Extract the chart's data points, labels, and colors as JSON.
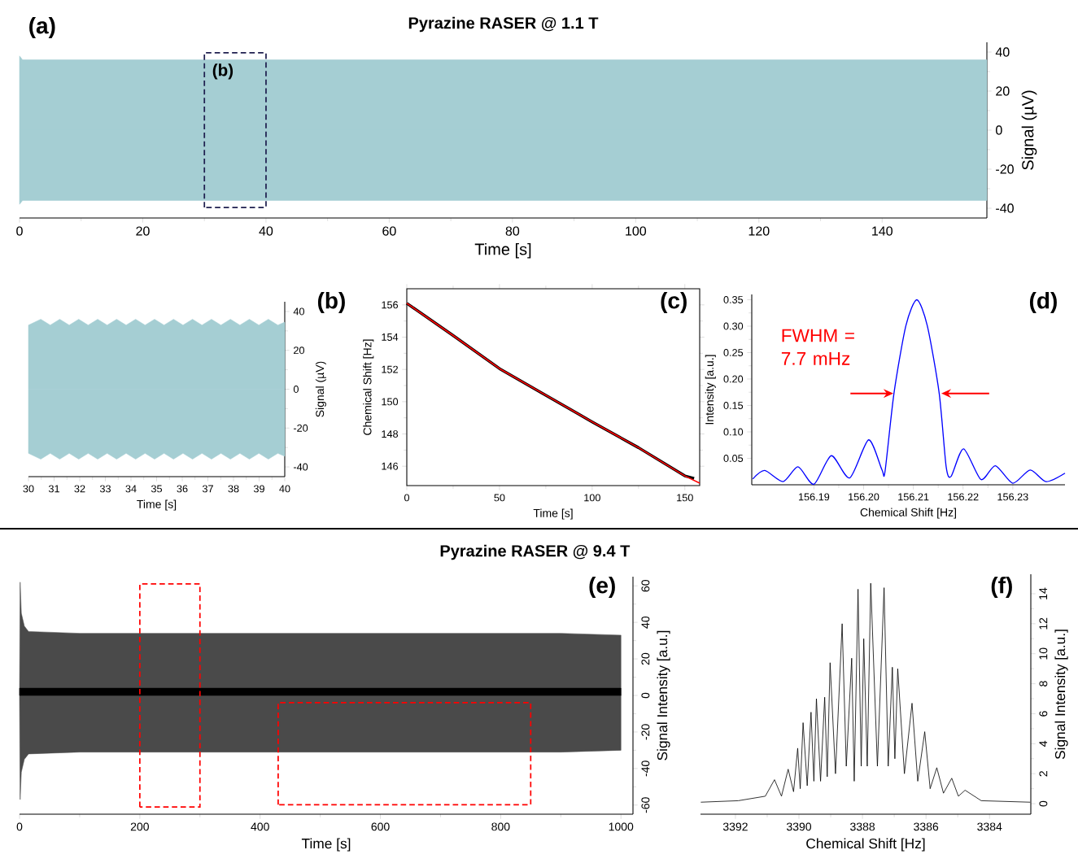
{
  "chart_data": [
    {
      "type": "area",
      "title": "Pyrazine RASER @ 1.1 T",
      "xlabel": "Time [s]",
      "ylabel": "Signal (µV)",
      "annotations": [
        "(a)",
        "(b)"
      ],
      "series": [
        {
          "color": "#a5ced3",
          "x": [
            0,
            0.5,
            157
          ],
          "values": [
            38,
            36,
            36
          ]
        },
        {
          "color": "#a5ced3",
          "x": [
            0,
            0.5,
            157
          ],
          "values": [
            -38,
            -36,
            -36
          ]
        }
      ],
      "xlim": [
        0,
        157
      ],
      "ylim": [
        -45,
        45
      ],
      "xticks": [
        0,
        20,
        40,
        60,
        80,
        100,
        120,
        140
      ],
      "yticks": [
        -40,
        -20,
        0,
        20,
        40
      ]
    },
    {
      "type": "area",
      "xlabel": "Time [s]",
      "ylabel": "Signal (µV)",
      "annotations": [
        "(b)"
      ],
      "series": [
        {
          "color": "#a5ced3",
          "x": [
            30,
            30.48,
            30.85,
            31.22,
            31.59,
            31.96,
            32.33,
            32.7,
            33.07,
            33.44,
            33.81,
            34.18,
            34.55,
            34.92,
            35.29,
            35.66,
            36.03,
            36.4,
            36.77,
            37.14,
            37.51,
            37.88,
            38.25,
            38.62,
            38.99,
            39.36,
            39.73,
            40
          ],
          "values": [
            33,
            36,
            33,
            36,
            33,
            36,
            33,
            36,
            33,
            36,
            33,
            36,
            33,
            36,
            33,
            36,
            33,
            36,
            33,
            36,
            33,
            36,
            33,
            36,
            33,
            36,
            33,
            34.5
          ]
        },
        {
          "color": "#a5ced3",
          "x": [
            30,
            30.48,
            30.85,
            31.22,
            31.59,
            31.96,
            32.33,
            32.7,
            33.07,
            33.44,
            33.81,
            34.18,
            34.55,
            34.92,
            35.29,
            35.66,
            36.03,
            36.4,
            36.77,
            37.14,
            37.51,
            37.88,
            38.25,
            38.62,
            38.99,
            39.36,
            39.73,
            40
          ],
          "values": [
            -33,
            -36,
            -33,
            -36,
            -33,
            -36,
            -33,
            -36,
            -33,
            -36,
            -33,
            -36,
            -33,
            -36,
            -33,
            -36,
            -33,
            -36,
            -33,
            -36,
            -33,
            -36,
            -33,
            -36,
            -33,
            -36,
            -33,
            -34.5
          ]
        }
      ],
      "xlim": [
        30,
        40
      ],
      "ylim": [
        -45,
        45
      ],
      "xticks": [
        30,
        31,
        32,
        33,
        34,
        35,
        36,
        37,
        38,
        39,
        40
      ],
      "yticks": [
        -40,
        -20,
        0,
        20,
        40
      ]
    },
    {
      "type": "line",
      "xlabel": "Time [s]",
      "ylabel": "Chemical Shift [Hz]",
      "annotations": [
        "(c)"
      ],
      "series": [
        {
          "color": "#000000",
          "x": [
            0,
            25,
            50,
            75,
            100,
            125,
            150,
            155
          ],
          "values": [
            156.1,
            154.1,
            152.05,
            150.4,
            148.75,
            147.15,
            145.4,
            145.25
          ]
        },
        {
          "color": "#ff0000",
          "x": [
            0,
            25,
            50,
            75,
            100,
            125,
            150,
            158
          ],
          "values": [
            156.1,
            154.1,
            152.05,
            150.4,
            148.75,
            147.15,
            145.4,
            144.95
          ]
        }
      ],
      "xlim": [
        0,
        158
      ],
      "ylim": [
        144.8,
        157
      ],
      "xticks": [
        0,
        50,
        100,
        150
      ],
      "yticks": [
        146,
        148,
        150,
        152,
        154,
        156
      ]
    },
    {
      "type": "line",
      "xlabel": "Chemical Shift [Hz]",
      "ylabel": "Intensity [a.u.]",
      "annotations": [
        "(d)",
        "FWHM = 7.7 mHz"
      ],
      "series": [
        {
          "color": "#0000ff",
          "x": [
            156.1777,
            156.1801,
            156.1838,
            156.1868,
            156.19,
            156.1935,
            156.1972,
            156.201,
            156.2037,
            156.2043,
            156.2061,
            156.2085,
            156.2107,
            156.2128,
            156.2152,
            156.2166,
            156.2176,
            156.2201,
            156.2236,
            156.2265,
            156.23,
            156.2335,
            156.2367,
            156.2405
          ],
          "values": [
            0.011,
            0.027,
            0.006,
            0.034,
            0.001,
            0.055,
            0.013,
            0.085,
            0.028,
            0.025,
            0.173,
            0.301,
            0.35,
            0.301,
            0.173,
            0.034,
            0.016,
            0.068,
            0.01,
            0.036,
            0.003,
            0.028,
            0.006,
            0.022
          ]
        }
      ],
      "xlim": [
        156.1775,
        156.2405
      ],
      "ylim": [
        0,
        0.36
      ],
      "xticks": [
        156.19,
        {
          "value": 156.2,
          "label": "156.20"
        },
        156.21,
        156.22,
        156.23
      ],
      "yticks": [
        0.05,
        {
          "value": 0.1,
          "label": "0.10"
        },
        0.15,
        {
          "value": 0.2,
          "label": "0.20"
        },
        0.25,
        {
          "value": 0.3,
          "label": "0.30"
        },
        0.35
      ]
    },
    {
      "type": "area",
      "title": "Pyrazine RASER @ 9.4 T",
      "xlabel": "Time [s]",
      "ylabel": "Signal Intensity [a.u.]",
      "annotations": [
        "(e)"
      ],
      "series": [
        {
          "color": "#4a4a4a",
          "x": [
            0,
            1,
            3,
            8,
            15,
            100,
            200,
            300,
            400,
            500,
            600,
            700,
            800,
            900,
            1000
          ],
          "values": [
            0,
            62,
            45,
            38,
            35,
            34,
            34,
            34,
            34,
            34,
            34,
            34,
            34,
            34,
            33
          ]
        },
        {
          "color": "#4a4a4a",
          "x": [
            0,
            1,
            3,
            8,
            15,
            100,
            200,
            300,
            400,
            500,
            600,
            700,
            800,
            900,
            1000
          ],
          "values": [
            0,
            -57,
            -42,
            -35,
            -32,
            -31,
            -31,
            -31,
            -31,
            -31,
            -31,
            -31,
            -31,
            -31,
            -30
          ]
        },
        {
          "color": "#000000",
          "x": [
            0,
            1000
          ],
          "values": [
            4,
            4
          ]
        }
      ],
      "xlim": [
        0,
        1020
      ],
      "ylim": [
        -65,
        65
      ],
      "xticks": [
        0,
        200,
        400,
        600,
        800,
        1000
      ],
      "yticks": [
        -60,
        -40,
        -20,
        0,
        20,
        40,
        60
      ]
    },
    {
      "type": "line",
      "xlabel": "Chemical Shift [Hz]",
      "ylabel": "Signal Intensity [a.u.]",
      "annotations": [
        "(f)"
      ],
      "series": [
        {
          "color": "#000000",
          "x": [
            3393.09,
            3391.91,
            3391.06,
            3390.77,
            3390.55,
            3390.34,
            3390.17,
            3390.04,
            3389.96,
            3389.87,
            3389.74,
            3389.62,
            3389.53,
            3389.45,
            3389.32,
            3389.19,
            3389.11,
            3389.02,
            3388.85,
            3388.64,
            3388.51,
            3388.34,
            3388.26,
            3388.14,
            3388.04,
            3387.96,
            3387.85,
            3387.74,
            3387.53,
            3387.32,
            3387.19,
            3387.06,
            3386.98,
            3386.89,
            3386.68,
            3386.44,
            3386.26,
            3386.04,
            3385.87,
            3385.66,
            3385.45,
            3385.19,
            3384.98,
            3384.77,
            3384.26,
            3382.72
          ],
          "values": [
            0.1,
            0.2,
            0.5,
            1.6,
            0.5,
            2.3,
            0.8,
            3.7,
            1.0,
            5.4,
            1.2,
            6.1,
            1.5,
            7.0,
            1.5,
            7.1,
            1.8,
            9.4,
            2.0,
            12.0,
            2.5,
            9.7,
            1.5,
            14.3,
            2.5,
            11.0,
            2.5,
            14.7,
            2.5,
            14.4,
            2.5,
            9.1,
            3.0,
            9.0,
            2.0,
            6.7,
            1.5,
            4.8,
            1.0,
            2.4,
            0.7,
            1.7,
            0.5,
            0.9,
            0.2,
            0.1
          ]
        }
      ],
      "xlim": [
        3393.1,
        3382.7
      ],
      "ylim": [
        -0.7,
        15.3
      ],
      "xticks": [
        3392,
        3390,
        3388,
        3386,
        3384
      ],
      "yticks": [
        0,
        2,
        4,
        6,
        8,
        10,
        12,
        14
      ]
    }
  ]
}
